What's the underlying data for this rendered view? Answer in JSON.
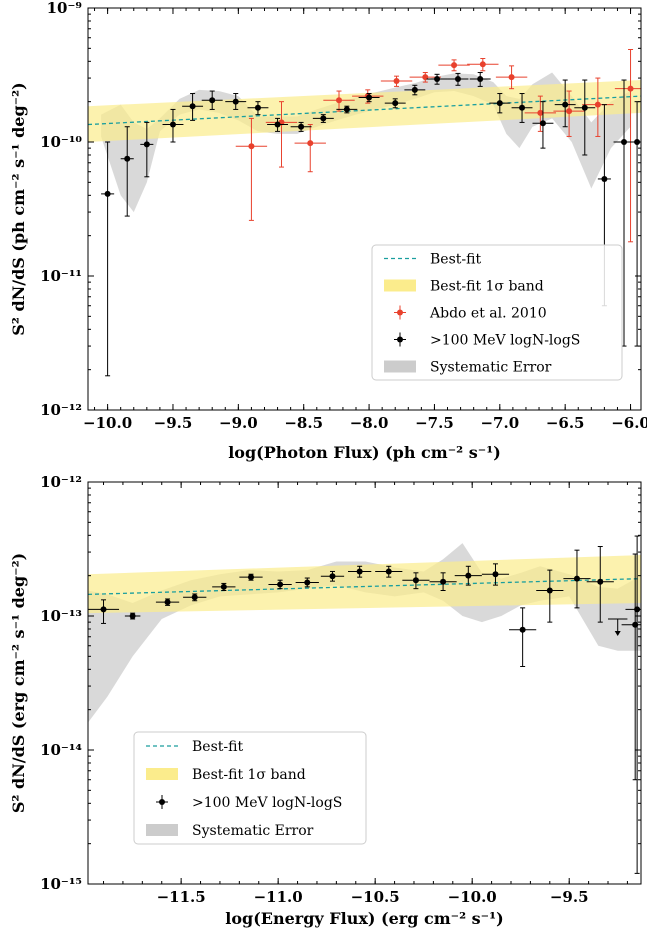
{
  "chart_data": [
    {
      "type": "scatter",
      "xlabel": "log(Photon Flux) (ph cm⁻² s⁻¹)",
      "ylabel": "S² dN/dS (ph cm⁻² s⁻¹ deg⁻²)",
      "yscale": "log",
      "xlim": [
        -10.15,
        -5.92
      ],
      "ylim": [
        1e-12,
        1e-09
      ],
      "x_ticks": [
        -10.0,
        -9.5,
        -9.0,
        -8.5,
        -8.0,
        -7.5,
        -7.0,
        -6.5,
        -6.0
      ],
      "x_tick_labels": [
        "−10.0",
        "−9.5",
        "−9.0",
        "−8.5",
        "−8.0",
        "−7.5",
        "−7.0",
        "−6.5",
        "−6.0"
      ],
      "y_ticks": [
        1e-12,
        1e-11,
        1e-10,
        1e-09
      ],
      "y_tick_labels": [
        "10⁻¹²",
        "10⁻¹¹",
        "10⁻¹⁰",
        "10⁻⁹"
      ],
      "grid": false,
      "legend_position": "lower-right",
      "legend": [
        {
          "label": "Best-fit",
          "kind": "dashed-line",
          "color": "#1a9e9e"
        },
        {
          "label": "Best-fit 1σ band",
          "kind": "band",
          "color": "#fbec8c"
        },
        {
          "label": "Abdo et al. 2010",
          "kind": "errorbar",
          "color": "#e8412d"
        },
        {
          "label": ">100 MeV logN-logS",
          "kind": "errorbar",
          "color": "#000000"
        },
        {
          "label": "Systematic Error",
          "kind": "band",
          "color": "#cccccc"
        }
      ],
      "best_fit": {
        "x": [
          -10.15,
          -5.92
        ],
        "y": [
          1.35e-10,
          2.2e-10
        ]
      },
      "band_1sigma": {
        "x": [
          -10.15,
          -5.92
        ],
        "lower": [
          1e-10,
          1.65e-10
        ],
        "upper": [
          1.85e-10,
          2.9e-10
        ]
      },
      "systematic_band": {
        "x": [
          -10.05,
          -9.9,
          -9.8,
          -9.7,
          -9.6,
          -9.45,
          -9.3,
          -9.15,
          -9.0,
          -8.85,
          -8.7,
          -8.55,
          -8.4,
          -8.25,
          -8.1,
          -7.95,
          -7.8,
          -7.65,
          -7.5,
          -7.35,
          -7.2,
          -7.05,
          -6.95,
          -6.85,
          -6.75,
          -6.6,
          -6.45,
          -6.3,
          -6.15,
          -6.0
        ],
        "lower": [
          1.1e-10,
          4e-11,
          3e-11,
          5e-11,
          1.2e-10,
          1.6e-10,
          1.75e-10,
          1.65e-10,
          1.45e-10,
          1.2e-10,
          1.15e-10,
          1.15e-10,
          1.3e-10,
          1.45e-10,
          1.6e-10,
          1.75e-10,
          1.9e-10,
          2.1e-10,
          2.35e-10,
          2.4e-10,
          2.2e-10,
          1.9e-10,
          1.15e-10,
          9e-11,
          1.3e-10,
          1.5e-10,
          1e-10,
          4.5e-11,
          9e-11,
          1.3e-10
        ],
        "upper": [
          1.6e-10,
          1.9e-10,
          1.4e-10,
          1.25e-10,
          1.5e-10,
          2.1e-10,
          2.45e-10,
          2.4e-10,
          2.2e-10,
          1.55e-10,
          1.55e-10,
          1.55e-10,
          1.75e-10,
          1.95e-10,
          2.15e-10,
          2.35e-10,
          2.55e-10,
          2.75e-10,
          3.05e-10,
          3.25e-10,
          3.2e-10,
          2.8e-10,
          2.2e-10,
          2.1e-10,
          2.7e-10,
          3.3e-10,
          2.2e-10,
          1.4e-10,
          2e-10,
          2.4e-10
        ]
      },
      "series": [
        {
          "name": ">100 MeV logN-logS",
          "color": "#000000",
          "points": [
            {
              "x": -10.0,
              "y": 4.1e-11,
              "xerr": 0.05,
              "ylo": 1.8e-12,
              "yhi": 1e-10
            },
            {
              "x": -9.85,
              "y": 7.5e-11,
              "xerr": 0.05,
              "ylo": 2.8e-11,
              "yhi": 1.3e-10
            },
            {
              "x": -9.7,
              "y": 9.6e-11,
              "xerr": 0.05,
              "ylo": 5.5e-11,
              "yhi": 1.4e-10
            },
            {
              "x": -9.5,
              "y": 1.35e-10,
              "xerr": 0.08,
              "ylo": 1e-10,
              "yhi": 1.75e-10
            },
            {
              "x": -9.35,
              "y": 1.85e-10,
              "xerr": 0.08,
              "ylo": 1.45e-10,
              "yhi": 2.3e-10
            },
            {
              "x": -9.2,
              "y": 2.05e-10,
              "xerr": 0.08,
              "ylo": 1.75e-10,
              "yhi": 2.4e-10
            },
            {
              "x": -9.02,
              "y": 2e-10,
              "xerr": 0.08,
              "ylo": 1.75e-10,
              "yhi": 2.3e-10
            },
            {
              "x": -8.85,
              "y": 1.8e-10,
              "xerr": 0.08,
              "ylo": 1.6e-10,
              "yhi": 2e-10
            },
            {
              "x": -8.7,
              "y": 1.35e-10,
              "xerr": 0.08,
              "ylo": 1.2e-10,
              "yhi": 1.5e-10
            },
            {
              "x": -8.52,
              "y": 1.3e-10,
              "xerr": 0.08,
              "ylo": 1.2e-10,
              "yhi": 1.4e-10
            },
            {
              "x": -8.35,
              "y": 1.5e-10,
              "xerr": 0.08,
              "ylo": 1.4e-10,
              "yhi": 1.6e-10
            },
            {
              "x": -8.17,
              "y": 1.75e-10,
              "xerr": 0.08,
              "ylo": 1.65e-10,
              "yhi": 1.85e-10
            },
            {
              "x": -8.0,
              "y": 2.15e-10,
              "xerr": 0.08,
              "ylo": 2e-10,
              "yhi": 2.3e-10
            },
            {
              "x": -7.8,
              "y": 1.95e-10,
              "xerr": 0.08,
              "ylo": 1.8e-10,
              "yhi": 2.1e-10
            },
            {
              "x": -7.65,
              "y": 2.45e-10,
              "xerr": 0.08,
              "ylo": 2.25e-10,
              "yhi": 2.65e-10
            },
            {
              "x": -7.48,
              "y": 2.95e-10,
              "xerr": 0.08,
              "ylo": 2.7e-10,
              "yhi": 3.2e-10
            },
            {
              "x": -7.32,
              "y": 2.95e-10,
              "xerr": 0.08,
              "ylo": 2.65e-10,
              "yhi": 3.25e-10
            },
            {
              "x": -7.15,
              "y": 2.95e-10,
              "xerr": 0.08,
              "ylo": 2.6e-10,
              "yhi": 3.3e-10
            },
            {
              "x": -7.0,
              "y": 1.95e-10,
              "xerr": 0.08,
              "ylo": 1.65e-10,
              "yhi": 2.3e-10
            },
            {
              "x": -6.83,
              "y": 1.8e-10,
              "xerr": 0.08,
              "ylo": 1.4e-10,
              "yhi": 2.3e-10
            },
            {
              "x": -6.67,
              "y": 1.38e-10,
              "xerr": 0.08,
              "ylo": 9e-11,
              "yhi": 2e-10
            },
            {
              "x": -6.5,
              "y": 1.9e-10,
              "xerr": 0.08,
              "ylo": 1.3e-10,
              "yhi": 2.9e-10
            },
            {
              "x": -6.35,
              "y": 1.8e-10,
              "xerr": 0.08,
              "ylo": 8e-11,
              "yhi": 2.9e-10
            },
            {
              "x": -6.2,
              "y": 5.3e-11,
              "xerr": 0.05,
              "ylo": 6e-12,
              "yhi": 1.9e-10
            },
            {
              "x": -6.05,
              "y": 1e-10,
              "xerr": 0.08,
              "ylo": 3e-12,
              "yhi": 2.9e-10
            },
            {
              "x": -5.95,
              "y": 1e-10,
              "xerr": 0.05,
              "ylo": 3e-12,
              "yhi": 2e-10
            }
          ]
        },
        {
          "name": "Abdo et al. 2010",
          "color": "#e8412d",
          "points": [
            {
              "x": -8.9,
              "y": 9.3e-11,
              "xerr": 0.12,
              "ylo": 2.6e-11,
              "yhi": 1.5e-10
            },
            {
              "x": -8.67,
              "y": 1.4e-10,
              "xerr": 0.12,
              "ylo": 6.5e-11,
              "yhi": 2e-10
            },
            {
              "x": -8.45,
              "y": 9.8e-11,
              "xerr": 0.12,
              "ylo": 6e-11,
              "yhi": 1.35e-10
            },
            {
              "x": -8.23,
              "y": 2.05e-10,
              "xerr": 0.12,
              "ylo": 1.7e-10,
              "yhi": 2.4e-10
            },
            {
              "x": -8.01,
              "y": 2.2e-10,
              "xerr": 0.12,
              "ylo": 1.95e-10,
              "yhi": 2.45e-10
            },
            {
              "x": -7.79,
              "y": 2.85e-10,
              "xerr": 0.12,
              "ylo": 2.6e-10,
              "yhi": 3.1e-10
            },
            {
              "x": -7.57,
              "y": 3.05e-10,
              "xerr": 0.12,
              "ylo": 2.8e-10,
              "yhi": 3.3e-10
            },
            {
              "x": -7.35,
              "y": 3.75e-10,
              "xerr": 0.12,
              "ylo": 3.4e-10,
              "yhi": 4.1e-10
            },
            {
              "x": -7.13,
              "y": 3.8e-10,
              "xerr": 0.12,
              "ylo": 3.4e-10,
              "yhi": 4.2e-10
            },
            {
              "x": -6.91,
              "y": 3.05e-10,
              "xerr": 0.12,
              "ylo": 2.5e-10,
              "yhi": 3.7e-10
            },
            {
              "x": -6.69,
              "y": 1.65e-10,
              "xerr": 0.12,
              "ylo": 1.2e-10,
              "yhi": 2.2e-10
            },
            {
              "x": -6.47,
              "y": 1.7e-10,
              "xerr": 0.12,
              "ylo": 1.1e-10,
              "yhi": 2.4e-10
            },
            {
              "x": -6.25,
              "y": 1.9e-10,
              "xerr": 0.12,
              "ylo": 1.1e-10,
              "yhi": 3e-10
            },
            {
              "x": -6.0,
              "y": 2.5e-10,
              "xerr": 0.12,
              "ylo": 1.8e-11,
              "yhi": 4.9e-10
            }
          ]
        }
      ]
    },
    {
      "type": "scatter",
      "xlabel": "log(Energy Flux) (erg cm⁻² s⁻¹)",
      "ylabel": "S² dN/dS (erg cm⁻² s⁻¹ deg⁻²)",
      "yscale": "log",
      "xlim": [
        -11.98,
        -9.13
      ],
      "ylim": [
        1e-15,
        1e-12
      ],
      "x_ticks": [
        -11.5,
        -11.0,
        -10.5,
        -10.0,
        -9.5
      ],
      "x_tick_labels": [
        "−11.5",
        "−11.0",
        "−10.5",
        "−10.0",
        "−9.5"
      ],
      "y_ticks": [
        1e-15,
        1e-14,
        1e-13,
        1e-12
      ],
      "y_tick_labels": [
        "10⁻¹⁵",
        "10⁻¹⁴",
        "10⁻¹³",
        "10⁻¹²"
      ],
      "grid": false,
      "legend_position": "lower-left",
      "legend": [
        {
          "label": "Best-fit",
          "kind": "dashed-line",
          "color": "#1a9e9e"
        },
        {
          "label": "Best-fit 1σ band",
          "kind": "band",
          "color": "#fbec8c"
        },
        {
          "label": ">100 MeV logN-logS",
          "kind": "errorbar",
          "color": "#000000"
        },
        {
          "label": "Systematic Error",
          "kind": "band",
          "color": "#cccccc"
        }
      ],
      "best_fit": {
        "x": [
          -11.98,
          -9.13
        ],
        "y": [
          1.45e-13,
          1.9e-13
        ]
      },
      "band_1sigma": {
        "x": [
          -11.98,
          -9.13
        ],
        "lower": [
          1.05e-13,
          1.25e-13
        ],
        "upper": [
          2.05e-13,
          2.85e-13
        ]
      },
      "systematic_band": {
        "x": [
          -11.98,
          -11.88,
          -11.75,
          -11.6,
          -11.45,
          -11.3,
          -11.15,
          -11.0,
          -10.85,
          -10.7,
          -10.55,
          -10.4,
          -10.25,
          -10.15,
          -10.05,
          -9.95,
          -9.85,
          -9.75,
          -9.65,
          -9.5,
          -9.35,
          -9.25,
          -9.13
        ],
        "lower": [
          1.6e-14,
          2.5e-14,
          5e-14,
          9.5e-14,
          1.2e-13,
          1.4e-13,
          1.45e-13,
          1.5e-13,
          1.6e-13,
          1.7e-13,
          1.5e-13,
          1.4e-13,
          1.5e-13,
          1.3e-13,
          1e-13,
          9e-14,
          1e-13,
          1.2e-13,
          1.3e-13,
          1.4e-13,
          6e-14,
          5.5e-14,
          5.5e-14
        ],
        "upper": [
          1.55e-13,
          1.45e-13,
          1.25e-13,
          1.55e-13,
          1.85e-13,
          2.05e-13,
          2.2e-13,
          2.15e-13,
          2.2e-13,
          2.55e-13,
          2.55e-13,
          2.3e-13,
          2.15e-13,
          2.65e-13,
          3.5e-13,
          2.1e-13,
          1.9e-13,
          2.1e-13,
          2.35e-13,
          2.05e-13,
          1.65e-13,
          1.6e-13,
          2e-13
        ]
      },
      "series": [
        {
          "name": ">100 MeV logN-logS",
          "color": "#000000",
          "points": [
            {
              "x": -11.9,
              "y": 1.12e-13,
              "xerr": 0.08,
              "ylo": 8.8e-14,
              "yhi": 1.32e-13
            },
            {
              "x": -11.75,
              "y": 1e-13,
              "xerr": 0.04,
              "ylo": 9.5e-14,
              "yhi": 1.05e-13
            },
            {
              "x": -11.57,
              "y": 1.27e-13,
              "xerr": 0.06,
              "ylo": 1.2e-13,
              "yhi": 1.34e-13
            },
            {
              "x": -11.43,
              "y": 1.38e-13,
              "xerr": 0.06,
              "ylo": 1.3e-13,
              "yhi": 1.46e-13
            },
            {
              "x": -11.28,
              "y": 1.65e-13,
              "xerr": 0.06,
              "ylo": 1.55e-13,
              "yhi": 1.75e-13
            },
            {
              "x": -11.14,
              "y": 1.95e-13,
              "xerr": 0.06,
              "ylo": 1.85e-13,
              "yhi": 2.05e-13
            },
            {
              "x": -10.99,
              "y": 1.72e-13,
              "xerr": 0.06,
              "ylo": 1.6e-13,
              "yhi": 1.85e-13
            },
            {
              "x": -10.85,
              "y": 1.78e-13,
              "xerr": 0.06,
              "ylo": 1.65e-13,
              "yhi": 1.92e-13
            },
            {
              "x": -10.72,
              "y": 1.98e-13,
              "xerr": 0.06,
              "ylo": 1.82e-13,
              "yhi": 2.15e-13
            },
            {
              "x": -10.58,
              "y": 2.15e-13,
              "xerr": 0.06,
              "ylo": 1.95e-13,
              "yhi": 2.35e-13
            },
            {
              "x": -10.43,
              "y": 2.15e-13,
              "xerr": 0.07,
              "ylo": 1.95e-13,
              "yhi": 2.35e-13
            },
            {
              "x": -10.29,
              "y": 1.85e-13,
              "xerr": 0.07,
              "ylo": 1.6e-13,
              "yhi": 2.1e-13
            },
            {
              "x": -10.15,
              "y": 1.8e-13,
              "xerr": 0.07,
              "ylo": 1.55e-13,
              "yhi": 2.1e-13
            },
            {
              "x": -10.02,
              "y": 2e-13,
              "xerr": 0.07,
              "ylo": 1.7e-13,
              "yhi": 2.35e-13
            },
            {
              "x": -9.88,
              "y": 2.05e-13,
              "xerr": 0.07,
              "ylo": 1.7e-13,
              "yhi": 2.45e-13
            },
            {
              "x": -9.74,
              "y": 7.9e-14,
              "xerr": 0.07,
              "ylo": 4.2e-14,
              "yhi": 1.15e-13
            },
            {
              "x": -9.6,
              "y": 1.55e-13,
              "xerr": 0.07,
              "ylo": 9e-14,
              "yhi": 2.2e-13
            },
            {
              "x": -9.46,
              "y": 1.9e-13,
              "xerr": 0.07,
              "ylo": 1.15e-13,
              "yhi": 3.1e-13
            },
            {
              "x": -9.34,
              "y": 1.8e-13,
              "xerr": 0.07,
              "ylo": 9e-14,
              "yhi": 3.3e-13
            },
            {
              "x": -9.25,
              "y": 9.5e-14,
              "xerr": 0.05,
              "ylo": 8e-14,
              "yhi": 9.5e-14,
              "upper_limit": true
            },
            {
              "x": -9.16,
              "y": 8.6e-14,
              "xerr": 0.07,
              "ylo": 6e-15,
              "yhi": 2.9e-13
            },
            {
              "x": -9.15,
              "y": 1.12e-13,
              "xerr": 0.06,
              "ylo": 1.2e-15,
              "yhi": 3.95e-13
            }
          ]
        }
      ]
    }
  ]
}
